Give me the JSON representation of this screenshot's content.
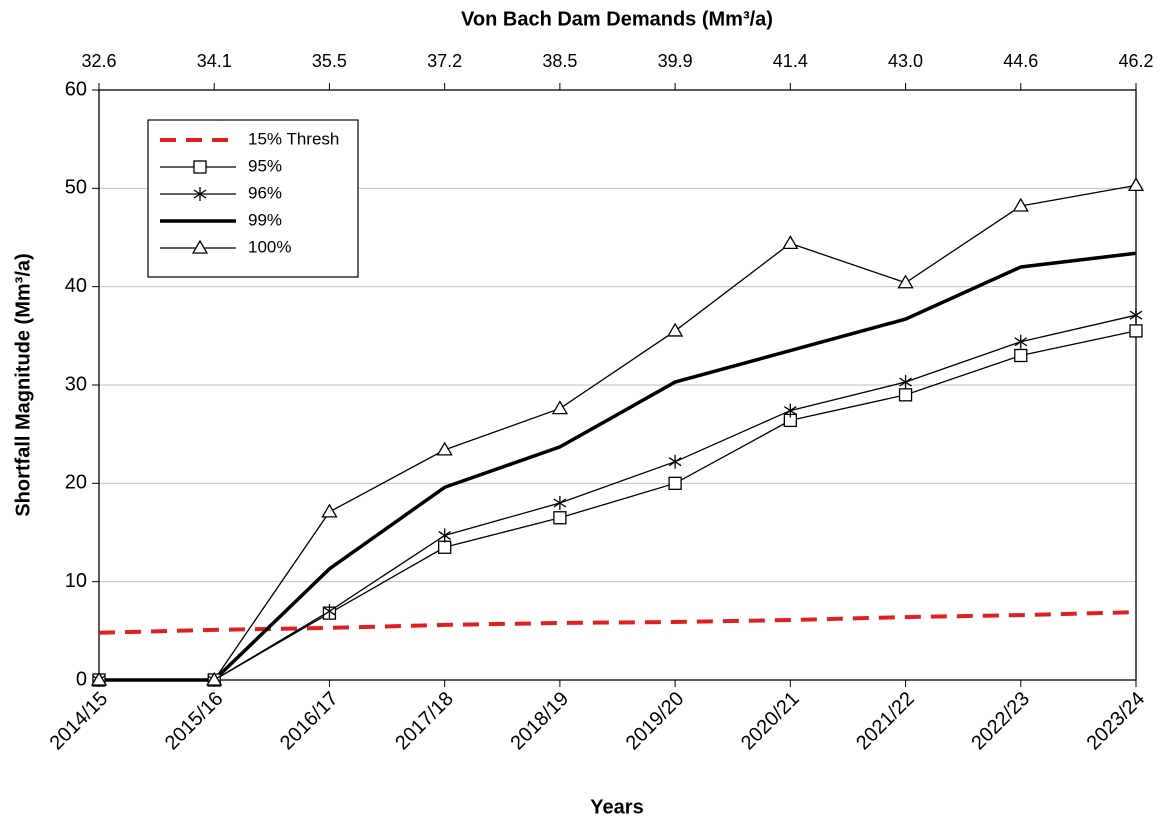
{
  "chart_data": {
    "type": "line",
    "title": "Von Bach Dam Demands (Mm³/a)",
    "x_label": "Years",
    "y_label": "Shortfall Magnitude (Mm³/a)",
    "categories": [
      "2014/15",
      "2015/16",
      "2016/17",
      "2017/18",
      "2018/19",
      "2019/20",
      "2020/21",
      "2021/22",
      "2022/23",
      "2023/24"
    ],
    "top_categories": [
      "32.6",
      "34.1",
      "35.5",
      "37.2",
      "38.5",
      "39.9",
      "41.4",
      "43.0",
      "44.6",
      "46.2"
    ],
    "ylim": [
      0,
      60
    ],
    "yticks": [
      0,
      10,
      20,
      30,
      40,
      50,
      60
    ],
    "grid": true,
    "legend": "upper left",
    "series": [
      {
        "name": "15% Thresh",
        "color": "#e02020",
        "dash": true,
        "width": 4,
        "marker": "none",
        "values": [
          4.8,
          5.1,
          5.3,
          5.6,
          5.8,
          5.9,
          6.1,
          6.4,
          6.6,
          6.9
        ]
      },
      {
        "name": "95%",
        "color": "#000000",
        "dash": false,
        "width": 1.3,
        "marker": "square",
        "values": [
          0,
          0,
          6.8,
          13.5,
          16.5,
          20,
          26.4,
          29,
          33,
          35.5
        ]
      },
      {
        "name": "96%",
        "color": "#000000",
        "dash": false,
        "width": 1.3,
        "marker": "star",
        "values": [
          0,
          0,
          7,
          14.7,
          18,
          22.2,
          27.4,
          30.3,
          34.4,
          37.1
        ]
      },
      {
        "name": "99%",
        "color": "#000000",
        "dash": false,
        "width": 3.5,
        "marker": "none",
        "values": [
          0,
          0,
          11.3,
          19.6,
          23.7,
          30.3,
          33.5,
          36.7,
          42,
          43.4
        ]
      },
      {
        "name": "100%",
        "color": "#000000",
        "dash": false,
        "width": 1.3,
        "marker": "triangle",
        "values": [
          0,
          0,
          17.1,
          23.4,
          27.6,
          35.5,
          44.4,
          40.4,
          48.2,
          50.3
        ]
      }
    ]
  }
}
